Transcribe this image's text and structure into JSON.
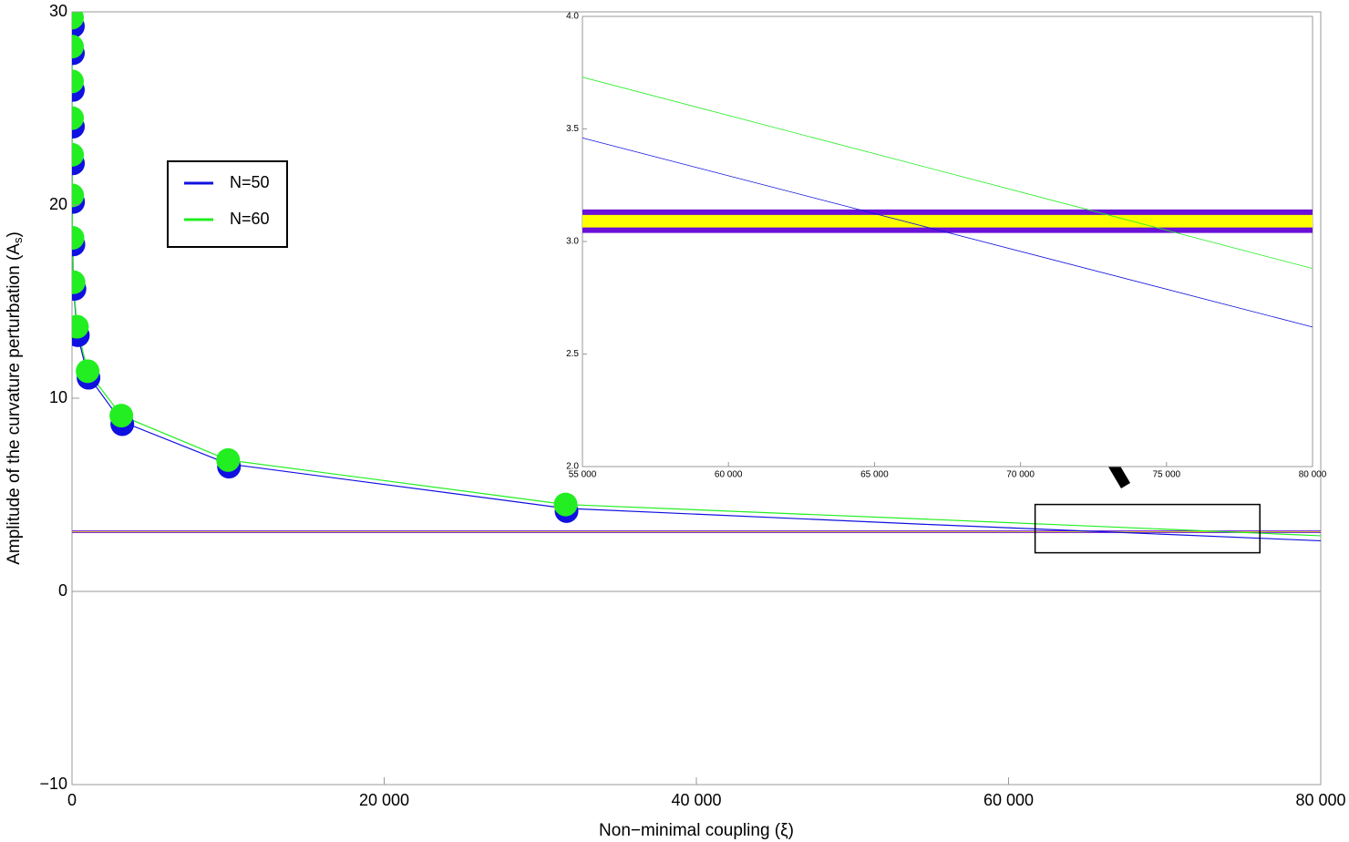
{
  "chart_data": {
    "type": "line",
    "x_label": "Non−minimal coupling (ξ)",
    "y_label": "Amplitude of the curvature perturbation (A",
    "y_label_sub": "s",
    "y_label_end": ")",
    "xlim": [
      0,
      80000
    ],
    "ylim": [
      -10,
      30
    ],
    "xticks": [
      0,
      {
        "value": 20000,
        "label": "20 000"
      },
      {
        "value": 40000,
        "label": "40 000"
      },
      {
        "value": 60000,
        "label": "60 000"
      },
      {
        "value": 80000,
        "label": "80 000"
      }
    ],
    "yticks": [
      {
        "value": -10,
        "label": "−10"
      },
      0,
      10,
      20,
      30
    ],
    "x": [
      0.0316,
      0.1,
      0.316,
      1,
      3.162,
      10,
      31.62,
      100,
      316.2,
      1000,
      3162,
      10000,
      31623
    ],
    "curve_x": [
      55000,
      80000
    ],
    "series": [
      {
        "name": "N=50",
        "color": "#1010e0",
        "values": [
          29.4,
          28.0,
          26.1,
          24.2,
          22.3,
          20.3,
          18.1,
          15.8,
          13.4,
          11.2,
          8.8,
          6.6,
          4.3
        ],
        "curve": [
          3.46,
          2.62
        ]
      },
      {
        "name": "N=60",
        "color": "#22ee22",
        "values": [
          29.7,
          28.2,
          26.4,
          24.5,
          22.6,
          20.5,
          18.3,
          16.0,
          13.7,
          11.4,
          9.1,
          6.8,
          4.5
        ],
        "curve": [
          3.73,
          2.88
        ]
      }
    ],
    "band": {
      "range": [
        3.05,
        3.13
      ],
      "edge_color": "#6a10d8",
      "fill_color": "#ffff00"
    },
    "zoom_box": {
      "x": [
        61700,
        76100
      ],
      "y": [
        2.0,
        4.5
      ]
    },
    "inset": {
      "xlim": [
        55000,
        80000
      ],
      "ylim": [
        2.0,
        4.0
      ],
      "xticks": [
        {
          "value": 55000,
          "label": "55 000"
        },
        {
          "value": 60000,
          "label": "60 000"
        },
        {
          "value": 65000,
          "label": "65 000"
        },
        {
          "value": 70000,
          "label": "70 000"
        },
        {
          "value": 75000,
          "label": "75 000"
        },
        {
          "value": 80000,
          "label": "80 000"
        }
      ],
      "yticks": [
        {
          "value": 2.0,
          "label": "2.0"
        },
        2.5,
        {
          "value": 3.0,
          "label": "3.0"
        },
        3.5,
        {
          "value": 4.0,
          "label": "4.0"
        }
      ]
    }
  }
}
